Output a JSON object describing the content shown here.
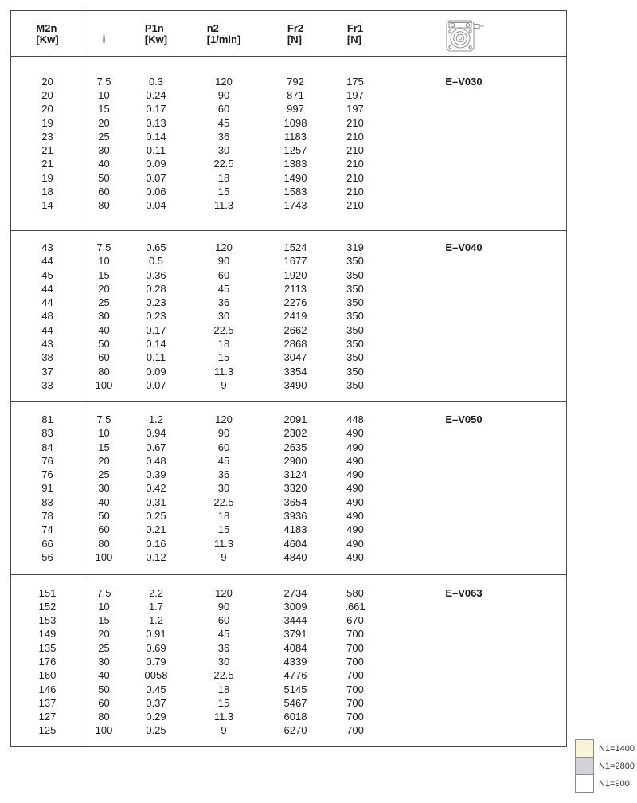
{
  "header": {
    "columns": [
      {
        "line1": "M2n",
        "line2": "[Kw]"
      },
      {
        "line1": "",
        "line2": "i"
      },
      {
        "line1": "P1n",
        "line2": "[Kw]"
      },
      {
        "line1": "n2",
        "line2": "[1/min]"
      },
      {
        "line1": "Fr2",
        "line2": "[N]"
      },
      {
        "line1": "Fr1",
        "line2": "[N]"
      }
    ],
    "icon": "worm-gearbox-icon"
  },
  "groups": [
    {
      "model": "E–V030",
      "rows": [
        [
          "20",
          "7.5",
          "0.3",
          "120",
          "792",
          "175"
        ],
        [
          "20",
          "10",
          "0.24",
          "90",
          "871",
          "197"
        ],
        [
          "20",
          "15",
          "0.17",
          "60",
          "997",
          "197"
        ],
        [
          "19",
          "20",
          "0.13",
          "45",
          "1098",
          "210"
        ],
        [
          "23",
          "25",
          "0.14",
          "36",
          "1183",
          "210"
        ],
        [
          "21",
          "30",
          "0.11",
          "30",
          "1257",
          "210"
        ],
        [
          "21",
          "40",
          "0.09",
          "22.5",
          "1383",
          "210"
        ],
        [
          "19",
          "50",
          "0.07",
          "18",
          "1490",
          "210"
        ],
        [
          "18",
          "60",
          "0.06",
          "15",
          "1583",
          "210"
        ],
        [
          "14",
          "80",
          "0.04",
          "11.3",
          "1743",
          "210"
        ]
      ]
    },
    {
      "model": "E–V040",
      "rows": [
        [
          "43",
          "7.5",
          "0.65",
          "120",
          "1524",
          "319"
        ],
        [
          "44",
          "10",
          "0.5",
          "90",
          "1677",
          "350"
        ],
        [
          "45",
          "15",
          "0.36",
          "60",
          "1920",
          "350"
        ],
        [
          "44",
          "20",
          "0.28",
          "45",
          "2113",
          "350"
        ],
        [
          "44",
          "25",
          "0.23",
          "36",
          "2276",
          "350"
        ],
        [
          "48",
          "30",
          "0.23",
          "30",
          "2419",
          "350"
        ],
        [
          "44",
          "40",
          "0.17",
          "22.5",
          "2662",
          "350"
        ],
        [
          "43",
          "50",
          "0.14",
          "18",
          "2868",
          "350"
        ],
        [
          "38",
          "60",
          "0.11",
          "15",
          "3047",
          "350"
        ],
        [
          "37",
          "80",
          "0.09",
          "11.3",
          "3354",
          "350"
        ],
        [
          "33",
          "100",
          "0.07",
          "9",
          "3490",
          "350"
        ]
      ]
    },
    {
      "model": "E–V050",
      "rows": [
        [
          "81",
          "7.5",
          "1.2",
          "120",
          "2091",
          "448"
        ],
        [
          "83",
          "10",
          "0.94",
          "90",
          "2302",
          "490"
        ],
        [
          "84",
          "15",
          "0.67",
          "60",
          "2635",
          "490"
        ],
        [
          "76",
          "20",
          "0.48",
          "45",
          "2900",
          "490"
        ],
        [
          "76",
          "25",
          "0.39",
          "36",
          "3124",
          "490"
        ],
        [
          "91",
          "30",
          "0.42",
          "30",
          "3320",
          "490"
        ],
        [
          "83",
          "40",
          "0.31",
          "22.5",
          "3654",
          "490"
        ],
        [
          "78",
          "50",
          "0.25",
          "18",
          "3936",
          "490"
        ],
        [
          "74",
          "60",
          "0.21",
          "15",
          "4183",
          "490"
        ],
        [
          "66",
          "80",
          "0.16",
          "11.3",
          "4604",
          "490"
        ],
        [
          "56",
          "100",
          "0.12",
          "9",
          "4840",
          "490"
        ]
      ]
    },
    {
      "model": "E–V063",
      "rows": [
        [
          "151",
          "7.5",
          "2.2",
          "120",
          "2734",
          "580"
        ],
        [
          "152",
          "10",
          "1.7",
          "90",
          "3009",
          ".661"
        ],
        [
          "153",
          "15",
          "1.2",
          "60",
          "3444",
          "670"
        ],
        [
          "149",
          "20",
          "0.91",
          "45",
          "3791",
          "700"
        ],
        [
          "135",
          "25",
          "0.69",
          "36",
          "4084",
          "700"
        ],
        [
          "176",
          "30",
          "0.79",
          "30",
          "4339",
          "700"
        ],
        [
          "160",
          "40",
          "0058",
          "22.5",
          "4776",
          "700"
        ],
        [
          "146",
          "50",
          "0.45",
          "18",
          "5145",
          "700"
        ],
        [
          "137",
          "60",
          "0.37",
          "15",
          "5467",
          "700"
        ],
        [
          "127",
          "80",
          "0.29",
          "11.3",
          "6018",
          "700"
        ],
        [
          "125",
          "100",
          "0.25",
          "9",
          "6270",
          "700"
        ]
      ]
    }
  ],
  "legend": [
    {
      "label": "N1=1400",
      "color": "#f8f4d5"
    },
    {
      "label": "N1=2800",
      "color": "#d2d2d4"
    },
    {
      "label": "N1=900",
      "color": "#ffffff"
    }
  ]
}
